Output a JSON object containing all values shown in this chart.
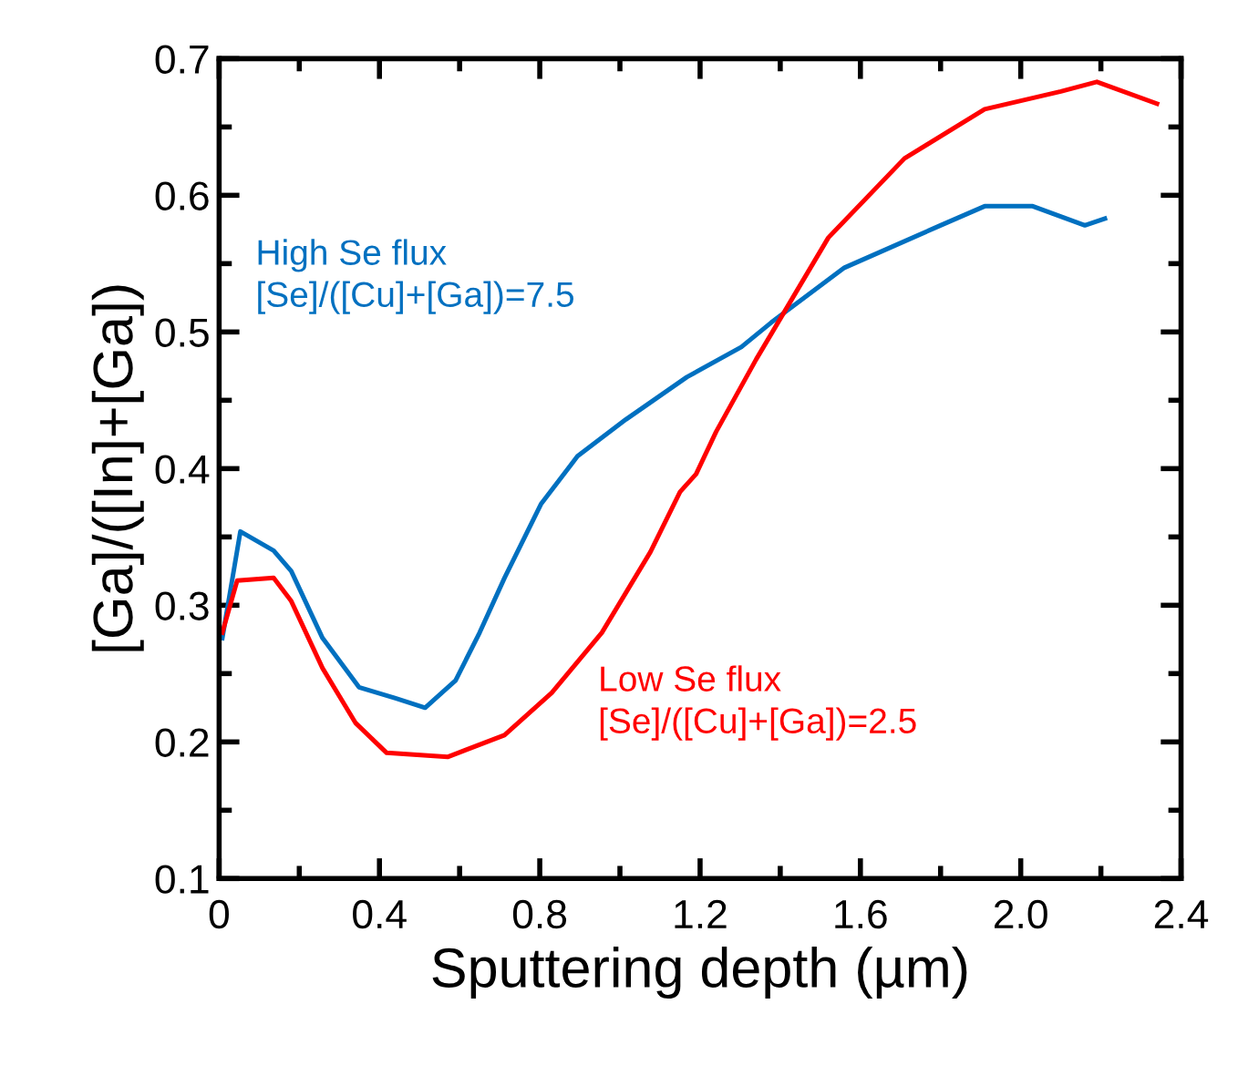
{
  "chart_data": {
    "type": "line",
    "xlabel": "Sputtering depth (µm)",
    "ylabel": "[Ga]/([In]+[Ga])",
    "xlim": [
      0,
      2.4
    ],
    "ylim": [
      0.1,
      0.7
    ],
    "xticks": [
      0,
      {
        "value": 0.2,
        "label": null
      },
      0.4,
      {
        "value": 0.6,
        "label": null
      },
      0.8,
      {
        "value": 1.0,
        "label": null
      },
      1.2,
      {
        "value": 1.4,
        "label": null
      },
      1.6,
      {
        "value": 1.8,
        "label": null
      },
      {
        "value": 2.0,
        "label": "2.0"
      },
      {
        "value": 2.2,
        "label": null
      },
      2.4
    ],
    "yticks": [
      0.1,
      {
        "value": 0.15,
        "label": null
      },
      0.2,
      {
        "value": 0.25,
        "label": null
      },
      0.3,
      {
        "value": 0.35,
        "label": null
      },
      0.4,
      {
        "value": 0.45,
        "label": null
      },
      0.5,
      {
        "value": 0.55,
        "label": null
      },
      0.6,
      {
        "value": 0.65,
        "label": null
      },
      0.7
    ],
    "grid": false,
    "legend": false,
    "marker": "none",
    "line_style": "solid",
    "series": [
      {
        "name": "High Se flux\n[Se]/([Cu]+[Ga])=7.5",
        "color": "#0070c0",
        "x": [
          0.008,
          0.053,
          0.136,
          0.18,
          0.258,
          0.349,
          0.44,
          0.514,
          0.59,
          0.65,
          0.712,
          0.803,
          0.894,
          1.015,
          1.167,
          1.303,
          1.378,
          1.56,
          1.8,
          1.91,
          2.03,
          2.16,
          2.21
        ],
        "values": [
          0.276,
          0.354,
          0.34,
          0.325,
          0.276,
          0.24,
          0.232,
          0.225,
          0.245,
          0.28,
          0.32,
          0.374,
          0.409,
          0.436,
          0.467,
          0.489,
          0.507,
          0.547,
          0.578,
          0.592,
          0.592,
          0.578,
          0.583
        ]
      },
      {
        "name": "Low Se flux\n[Se]/([Cu]+[Ga])=2.5",
        "color": "#ff0000",
        "x": [
          0.008,
          0.045,
          0.136,
          0.18,
          0.258,
          0.34,
          0.418,
          0.57,
          0.712,
          0.83,
          0.955,
          1.076,
          1.15,
          1.19,
          1.24,
          1.34,
          1.52,
          1.71,
          1.91,
          2.1,
          2.19,
          2.34
        ],
        "values": [
          0.28,
          0.318,
          0.32,
          0.303,
          0.254,
          0.214,
          0.192,
          0.189,
          0.205,
          0.236,
          0.28,
          0.339,
          0.383,
          0.396,
          0.427,
          0.48,
          0.569,
          0.627,
          0.663,
          0.676,
          0.683,
          0.667
        ]
      }
    ]
  }
}
